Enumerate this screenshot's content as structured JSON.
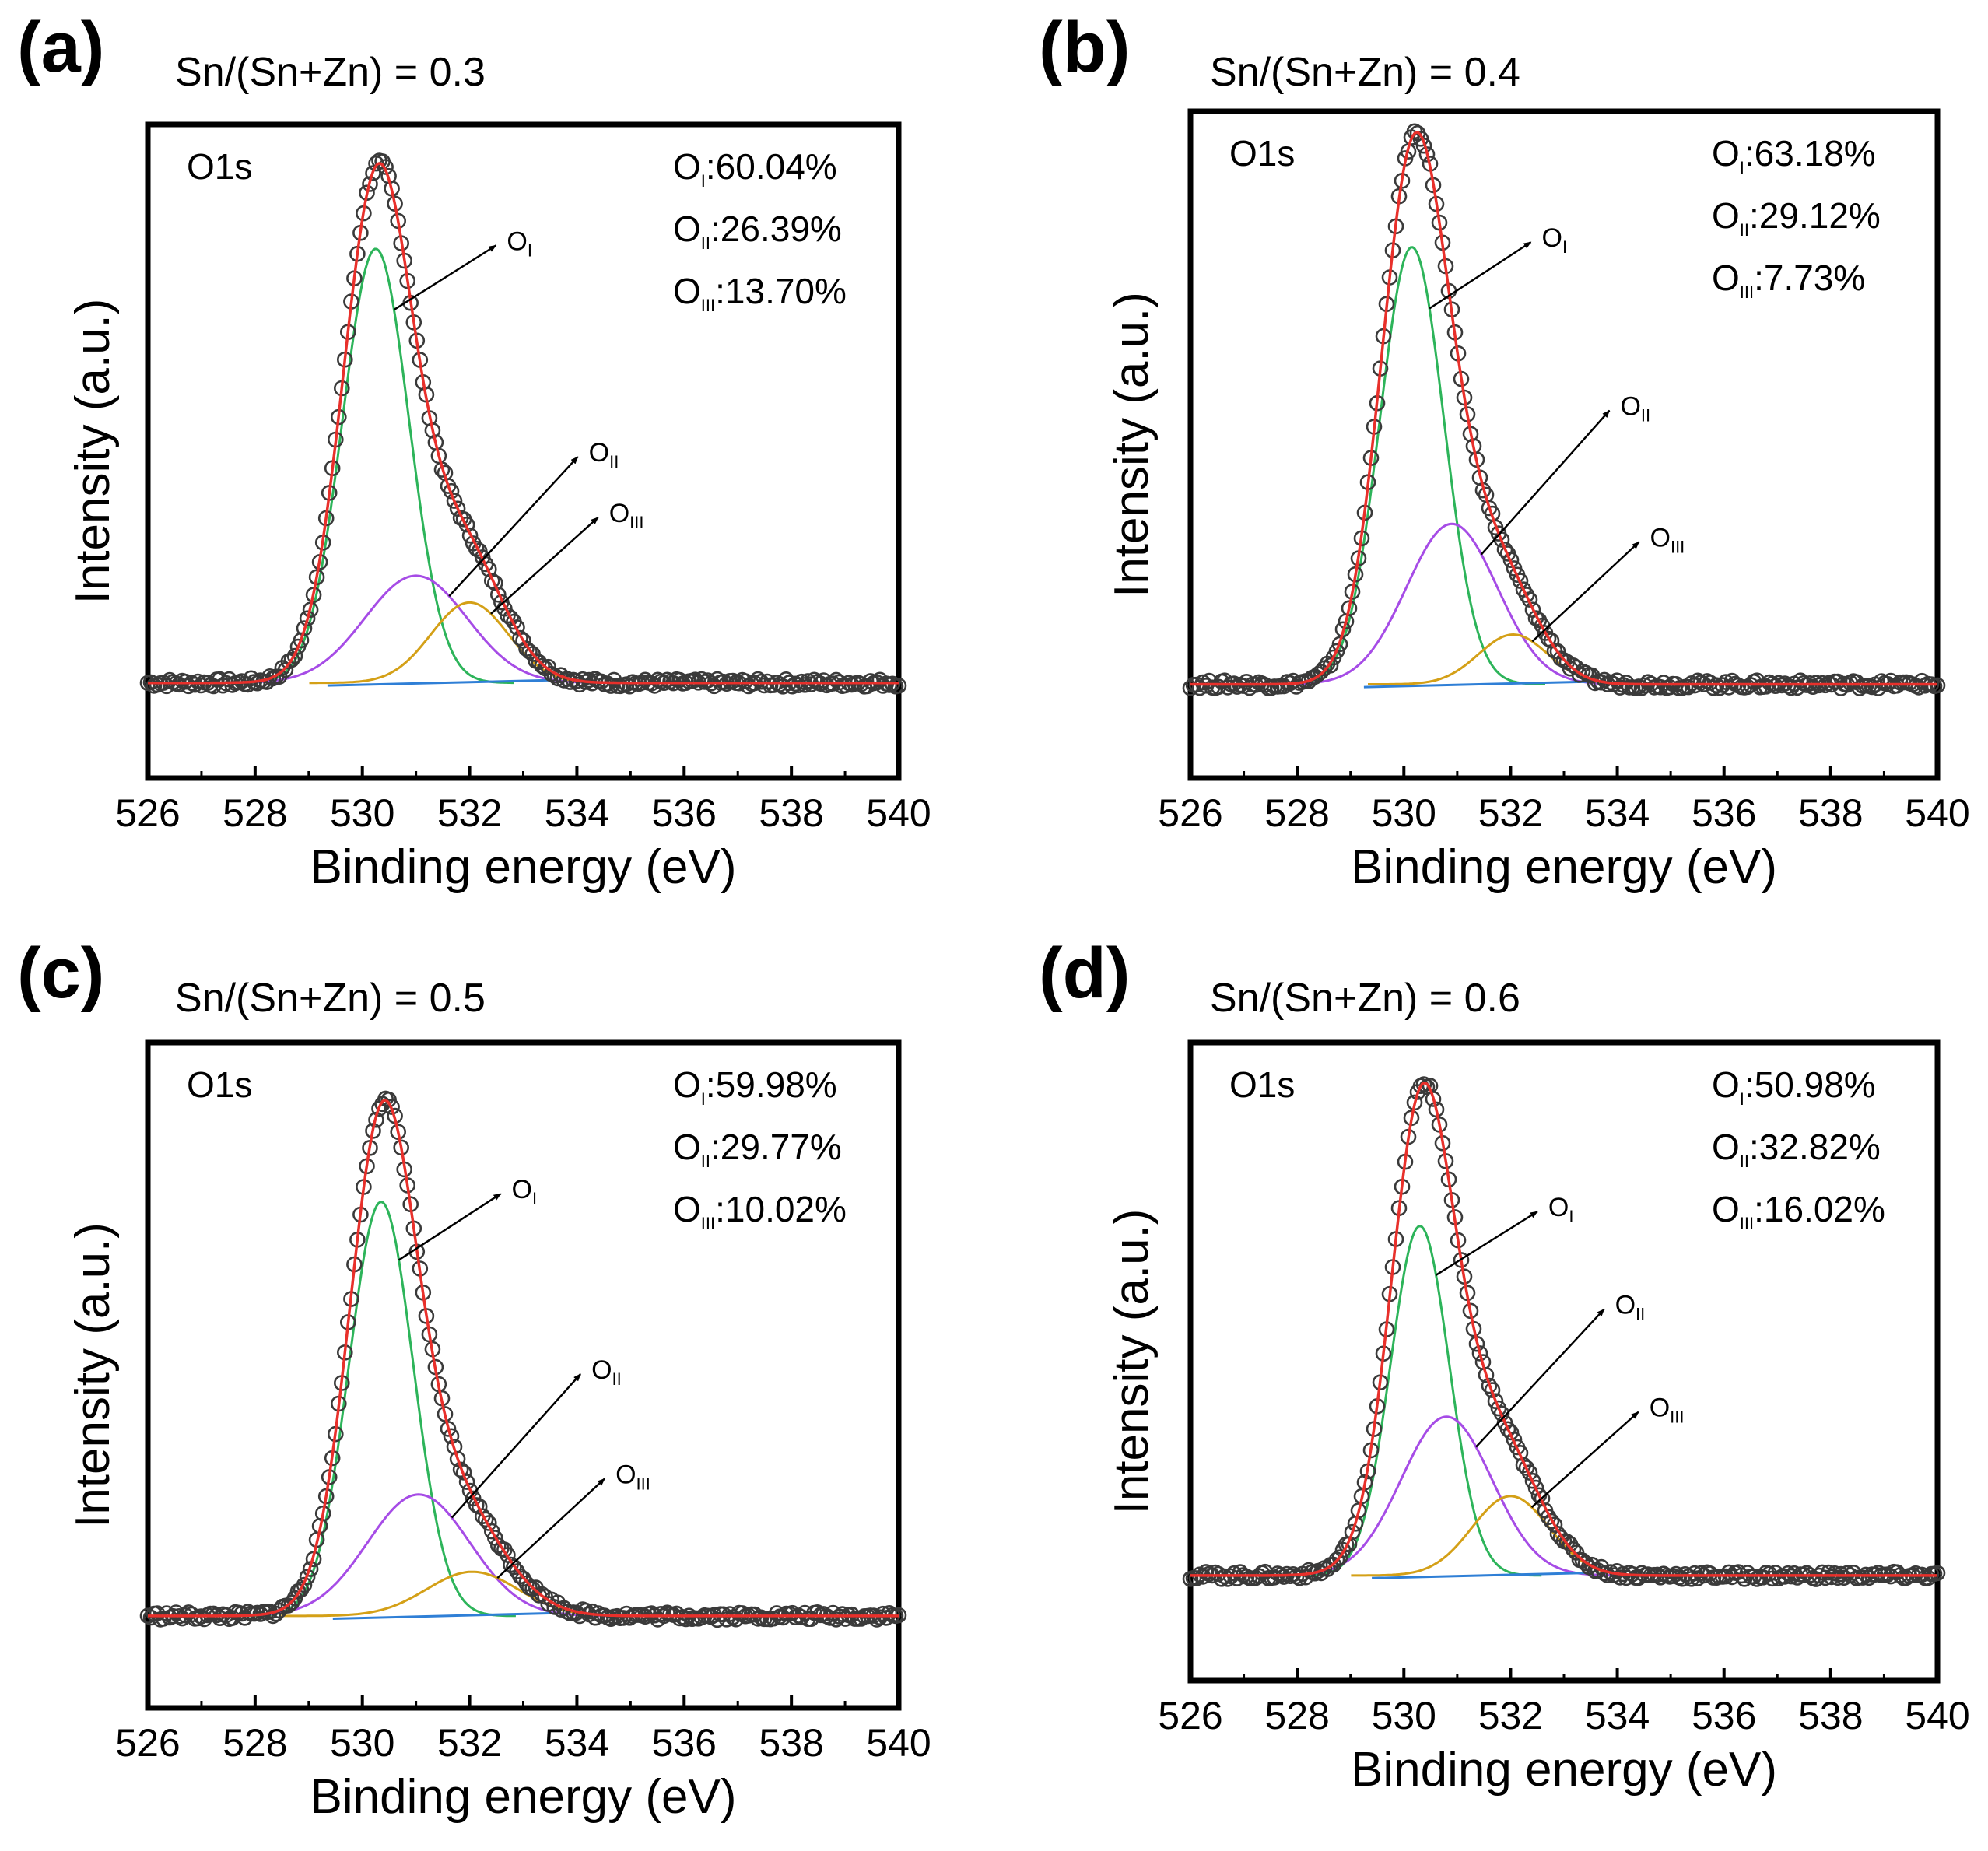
{
  "chart_data": [
    {
      "type": "line",
      "panel_label": "(a)",
      "title": "Sn/(Sn+Zn) = 0.3",
      "region": "O1s",
      "xlabel": "Binding energy (eV)",
      "ylabel": "Intensity (a.u.)",
      "xlim": [
        526,
        540
      ],
      "x_ticks": [
        "526",
        "528",
        "530",
        "532",
        "534",
        "536",
        "538",
        "540"
      ],
      "ylim": [
        0,
        1
      ],
      "baseline": 0.08,
      "peaks": [
        {
          "name": "O",
          "sub": "I",
          "center": 530.25,
          "height": 0.81,
          "width": 0.62
        },
        {
          "name": "O",
          "sub": "II",
          "center": 531.0,
          "height": 0.2,
          "width": 0.95
        },
        {
          "name": "O",
          "sub": "III",
          "center": 532.0,
          "height": 0.15,
          "width": 0.72
        }
      ],
      "fractions": [
        {
          "name": "O",
          "sub": "I",
          "value": ":60.04%"
        },
        {
          "name": "O",
          "sub": "II",
          "value": ":26.39%"
        },
        {
          "name": "O",
          "sub": "III",
          "value": ":13.70%"
        }
      ],
      "series": [
        {
          "name": "experimental data",
          "style": "open circles",
          "color": "#444444"
        },
        {
          "name": "fit envelope",
          "color": "#e8302b"
        },
        {
          "name": "O_I",
          "color": "#2db45a"
        },
        {
          "name": "O_II",
          "color": "#a64ce6"
        },
        {
          "name": "O_III",
          "color": "#d4a017"
        },
        {
          "name": "background",
          "color": "#2f7fd6"
        }
      ]
    },
    {
      "type": "line",
      "panel_label": "(b)",
      "title": "Sn/(Sn+Zn) = 0.4",
      "region": "O1s",
      "xlabel": "Binding energy (eV)",
      "ylabel": "Intensity (a.u.)",
      "xlim": [
        526,
        540
      ],
      "x_ticks": [
        "526",
        "528",
        "530",
        "532",
        "534",
        "536",
        "538",
        "540"
      ],
      "ylim": [
        0,
        1
      ],
      "baseline": 0.085,
      "peaks": [
        {
          "name": "O",
          "sub": "I",
          "center": 530.15,
          "height": 0.79,
          "width": 0.6
        },
        {
          "name": "O",
          "sub": "II",
          "center": 530.9,
          "height": 0.29,
          "width": 0.85
        },
        {
          "name": "O",
          "sub": "III",
          "center": 532.05,
          "height": 0.09,
          "width": 0.65
        }
      ],
      "fractions": [
        {
          "name": "O",
          "sub": "I",
          "value": ":63.18%"
        },
        {
          "name": "O",
          "sub": "II",
          "value": ":29.12%"
        },
        {
          "name": "O",
          "sub": "III",
          "value": ":7.73%"
        }
      ],
      "series": [
        {
          "name": "experimental data",
          "style": "open circles",
          "color": "#444444"
        },
        {
          "name": "fit envelope",
          "color": "#e8302b"
        },
        {
          "name": "O_I",
          "color": "#2db45a"
        },
        {
          "name": "O_II",
          "color": "#a64ce6"
        },
        {
          "name": "O_III",
          "color": "#d4a017"
        },
        {
          "name": "background",
          "color": "#2f7fd6"
        }
      ]
    },
    {
      "type": "line",
      "panel_label": "(c)",
      "title": "Sn/(Sn+Zn) = 0.5",
      "region": "O1s",
      "xlabel": "Binding energy (eV)",
      "ylabel": "Intensity (a.u.)",
      "xlim": [
        526,
        540
      ],
      "x_ticks": [
        "526",
        "528",
        "530",
        "532",
        "534",
        "536",
        "538",
        "540"
      ],
      "ylim": [
        0,
        1
      ],
      "baseline": 0.07,
      "peaks": [
        {
          "name": "O",
          "sub": "I",
          "center": 530.35,
          "height": 0.75,
          "width": 0.6
        },
        {
          "name": "O",
          "sub": "II",
          "center": 531.05,
          "height": 0.22,
          "width": 0.95
        },
        {
          "name": "O",
          "sub": "III",
          "center": 532.05,
          "height": 0.08,
          "width": 0.85
        }
      ],
      "fractions": [
        {
          "name": "O",
          "sub": "I",
          "value": ":59.98%"
        },
        {
          "name": "O",
          "sub": "II",
          "value": ":29.77%"
        },
        {
          "name": "O",
          "sub": "III",
          "value": ":10.02%"
        }
      ],
      "series": [
        {
          "name": "experimental data",
          "style": "open circles",
          "color": "#444444"
        },
        {
          "name": "fit envelope",
          "color": "#e8302b"
        },
        {
          "name": "O_I",
          "color": "#2db45a"
        },
        {
          "name": "O_II",
          "color": "#a64ce6"
        },
        {
          "name": "O_III",
          "color": "#d4a017"
        },
        {
          "name": "background",
          "color": "#2f7fd6"
        }
      ]
    },
    {
      "type": "line",
      "panel_label": "(d)",
      "title": "Sn/(Sn+Zn) = 0.6",
      "region": "O1s",
      "xlabel": "Binding energy (eV)",
      "ylabel": "Intensity (a.u.)",
      "xlim": [
        526,
        540
      ],
      "x_ticks": [
        "526",
        "528",
        "530",
        "532",
        "534",
        "536",
        "538",
        "540"
      ],
      "ylim": [
        0,
        1
      ],
      "baseline": 0.09,
      "peaks": [
        {
          "name": "O",
          "sub": "I",
          "center": 530.3,
          "height": 0.66,
          "width": 0.55
        },
        {
          "name": "O",
          "sub": "II",
          "center": 530.8,
          "height": 0.3,
          "width": 0.85
        },
        {
          "name": "O",
          "sub": "III",
          "center": 532.0,
          "height": 0.15,
          "width": 0.72
        }
      ],
      "fractions": [
        {
          "name": "O",
          "sub": "I",
          "value": ":50.98%"
        },
        {
          "name": "O",
          "sub": "II",
          "value": ":32.82%"
        },
        {
          "name": "O",
          "sub": "III",
          "value": ":16.02%"
        }
      ],
      "series": [
        {
          "name": "experimental data",
          "style": "open circles",
          "color": "#444444"
        },
        {
          "name": "fit envelope",
          "color": "#e8302b"
        },
        {
          "name": "O_I",
          "color": "#2db45a"
        },
        {
          "name": "O_II",
          "color": "#a64ce6"
        },
        {
          "name": "O_III",
          "color": "#d4a017"
        },
        {
          "name": "background",
          "color": "#2f7fd6"
        }
      ]
    }
  ]
}
